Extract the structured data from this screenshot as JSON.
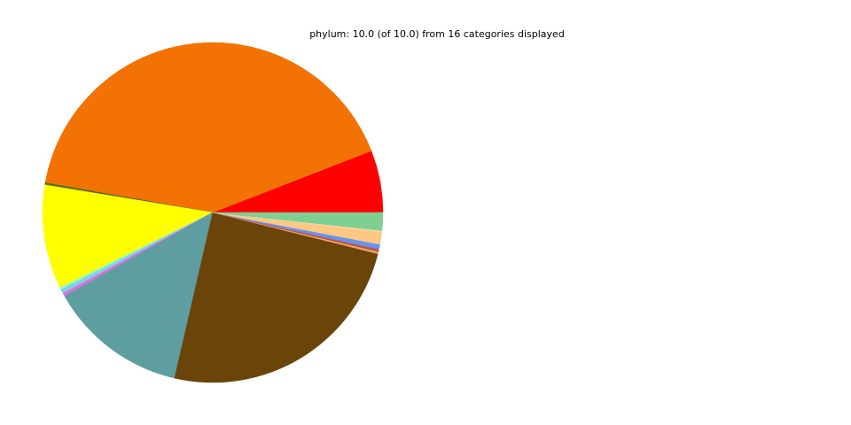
{
  "chart_data": {
    "type": "pie",
    "title": "phylum: 10.0 (of 10.0) from 16 categories displayed",
    "total": 10.0,
    "start_angle_deg": 0,
    "direction": "counterclockwise",
    "slices": [
      {
        "value": 0.59,
        "color": "#ff0000"
      },
      {
        "value": 4.13,
        "color": "#f27304"
      },
      {
        "value": 0.02,
        "color": "#556b2f"
      },
      {
        "value": 0.99,
        "color": "#ffff00"
      },
      {
        "value": 0.02,
        "color": "#7fffd4"
      },
      {
        "value": 0.04,
        "color": "#87ceeb"
      },
      {
        "value": 0.03,
        "color": "#da70d6"
      },
      {
        "value": 1.32,
        "color": "#5f9ea0"
      },
      {
        "value": 2.47,
        "color": "#6b4409"
      },
      {
        "value": 0.02,
        "color": "#f4a460"
      },
      {
        "value": 0.02,
        "color": "#b05a3c"
      },
      {
        "value": 0.01,
        "color": "#9370db"
      },
      {
        "value": 0.04,
        "color": "#6495ed"
      },
      {
        "value": 0.12,
        "color": "#ffc784"
      },
      {
        "value": 0.01,
        "color": "#eee8aa"
      },
      {
        "value": 0.17,
        "color": "#7fce92"
      }
    ]
  }
}
